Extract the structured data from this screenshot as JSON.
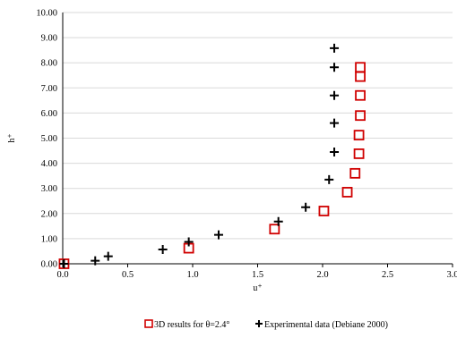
{
  "chart_data": {
    "type": "scatter",
    "title": "",
    "xlabel": "u⁺",
    "ylabel": "h⁺",
    "xlim": [
      0.0,
      3.0
    ],
    "ylim": [
      0.0,
      10.0
    ],
    "x_ticks": [
      "0.0",
      "0.5",
      "1.0",
      "1.5",
      "2.0",
      "2.5",
      "3.0"
    ],
    "y_ticks": [
      "0.00",
      "1.00",
      "2.00",
      "3.00",
      "4.00",
      "5.00",
      "6.00",
      "7.00",
      "8.00",
      "9.00",
      "10.00"
    ],
    "grid": "horizontal",
    "legend_position": "bottom",
    "series": [
      {
        "name": "3D results for θ=2.4°",
        "marker": "square",
        "color": "#d00000",
        "points": [
          [
            0.01,
            0.0
          ],
          [
            0.97,
            0.62
          ],
          [
            1.63,
            1.38
          ],
          [
            2.01,
            2.1
          ],
          [
            2.19,
            2.85
          ],
          [
            2.25,
            3.6
          ],
          [
            2.28,
            4.38
          ],
          [
            2.28,
            5.12
          ],
          [
            2.29,
            5.9
          ],
          [
            2.29,
            6.7
          ],
          [
            2.29,
            7.45
          ],
          [
            2.29,
            7.82
          ]
        ]
      },
      {
        "name": "Experimental data (Debiane 2000)",
        "marker": "plus",
        "color": "#000000",
        "points": [
          [
            0.01,
            0.0
          ],
          [
            0.25,
            0.12
          ],
          [
            0.35,
            0.3
          ],
          [
            0.77,
            0.57
          ],
          [
            0.97,
            0.87
          ],
          [
            1.2,
            1.15
          ],
          [
            1.66,
            1.68
          ],
          [
            1.87,
            2.25
          ],
          [
            2.05,
            3.35
          ],
          [
            2.09,
            4.45
          ],
          [
            2.09,
            5.6
          ],
          [
            2.09,
            6.7
          ],
          [
            2.09,
            7.82
          ],
          [
            2.09,
            8.58
          ]
        ]
      }
    ]
  }
}
